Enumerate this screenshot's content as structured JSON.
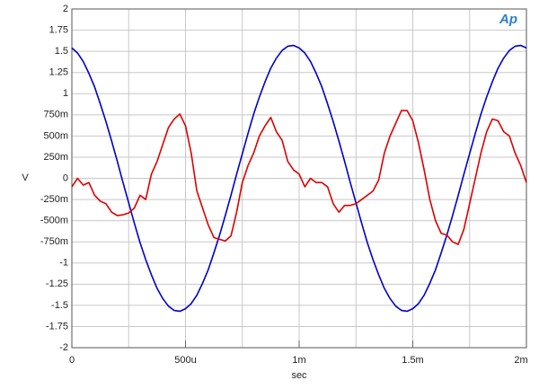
{
  "chart_data": {
    "type": "line",
    "logo": "Ap",
    "x_label": "sec",
    "y_label": "V",
    "xlim": [
      0,
      0.002
    ],
    "ylim": [
      -2,
      2
    ],
    "xticks": [
      0,
      {
        "value": 0.0005,
        "label": "500u"
      },
      {
        "value": 0.001,
        "label": "1m"
      },
      {
        "value": 0.0015,
        "label": "1.5m"
      },
      {
        "value": 0.002,
        "label": "2m"
      }
    ],
    "xminorticks": [
      0.00025,
      0.00075,
      0.00125,
      0.00175
    ],
    "yticks": [
      2,
      1.75,
      1.5,
      1.25,
      1,
      {
        "value": 0.75,
        "label": "750m"
      },
      {
        "value": 0.5,
        "label": "500m"
      },
      {
        "value": 0.25,
        "label": "250m"
      },
      0,
      {
        "value": -0.25,
        "label": "-250m"
      },
      {
        "value": -0.5,
        "label": "-500m"
      },
      {
        "value": -0.75,
        "label": "-750m"
      },
      -1,
      -1.25,
      -1.5,
      -1.75,
      -2
    ],
    "grid": true,
    "x": [
      0,
      2.5e-05,
      5e-05,
      7.5e-05,
      0.0001,
      0.000125,
      0.00015,
      0.000175,
      0.0002,
      0.000225,
      0.00025,
      0.000275,
      0.0003,
      0.000325,
      0.00035,
      0.000375,
      0.0004,
      0.000425,
      0.00045,
      0.000475,
      0.0005,
      0.000525,
      0.00055,
      0.000575,
      0.0006,
      0.000625,
      0.00065,
      0.000675,
      0.0007,
      0.000725,
      0.00075,
      0.000775,
      0.0008,
      0.000825,
      0.00085,
      0.000875,
      0.0009,
      0.000925,
      0.00095,
      0.000975,
      0.001,
      0.001025,
      0.00105,
      0.001075,
      0.0011,
      0.001125,
      0.00115,
      0.001175,
      0.0012,
      0.001225,
      0.00125,
      0.001275,
      0.0013,
      0.001325,
      0.00135,
      0.001375,
      0.0014,
      0.001425,
      0.00145,
      0.001475,
      0.0015,
      0.001525,
      0.00155,
      0.001575,
      0.0016,
      0.001625,
      0.00165,
      0.001675,
      0.0017,
      0.001725,
      0.00175,
      0.001775,
      0.0018,
      0.001825,
      0.00185,
      0.001875,
      0.0019,
      0.001925,
      0.00195,
      0.001975,
      0.002
    ],
    "series": [
      {
        "color": "#0000cc",
        "values": [
          1.54,
          1.48,
          1.38,
          1.24,
          1.08,
          0.88,
          0.67,
          0.44,
          0.2,
          -0.05,
          -0.29,
          -0.53,
          -0.76,
          -0.96,
          -1.14,
          -1.3,
          -1.42,
          -1.51,
          -1.56,
          -1.57,
          -1.54,
          -1.48,
          -1.38,
          -1.24,
          -1.08,
          -0.88,
          -0.67,
          -0.44,
          -0.2,
          0.05,
          0.29,
          0.53,
          0.76,
          0.96,
          1.14,
          1.3,
          1.42,
          1.51,
          1.56,
          1.57,
          1.54,
          1.48,
          1.38,
          1.24,
          1.08,
          0.88,
          0.67,
          0.44,
          0.2,
          -0.05,
          -0.29,
          -0.53,
          -0.76,
          -0.96,
          -1.14,
          -1.3,
          -1.42,
          -1.51,
          -1.56,
          -1.57,
          -1.54,
          -1.48,
          -1.38,
          -1.24,
          -1.08,
          -0.88,
          -0.67,
          -0.44,
          -0.2,
          0.05,
          0.29,
          0.53,
          0.76,
          0.96,
          1.14,
          1.3,
          1.42,
          1.51,
          1.56,
          1.57,
          1.54
        ]
      },
      {
        "color": "#dd0000",
        "values": [
          -0.1,
          0.0,
          -0.08,
          -0.05,
          -0.2,
          -0.27,
          -0.3,
          -0.4,
          -0.44,
          -0.43,
          -0.41,
          -0.35,
          -0.2,
          -0.25,
          0.05,
          0.2,
          0.4,
          0.6,
          0.7,
          0.76,
          0.62,
          0.3,
          -0.15,
          -0.35,
          -0.55,
          -0.7,
          -0.72,
          -0.74,
          -0.68,
          -0.4,
          -0.05,
          0.15,
          0.3,
          0.5,
          0.62,
          0.72,
          0.55,
          0.45,
          0.2,
          0.1,
          0.05,
          -0.1,
          0,
          -0.05,
          -0.05,
          -0.1,
          -0.3,
          -0.4,
          -0.32,
          -0.32,
          -0.3,
          -0.25,
          -0.2,
          -0.15,
          -0.02,
          0.3,
          0.5,
          0.65,
          0.8,
          0.8,
          0.68,
          0.42,
          0.1,
          -0.25,
          -0.5,
          -0.65,
          -0.67,
          -0.75,
          -0.78,
          -0.6,
          -0.3,
          0,
          0.3,
          0.55,
          0.7,
          0.68,
          0.55,
          0.5,
          0.3,
          0.15,
          -0.05
        ]
      }
    ]
  }
}
